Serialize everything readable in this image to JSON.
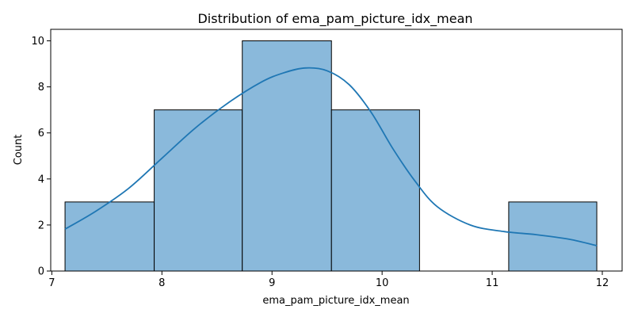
{
  "chart_data": {
    "type": "histogram",
    "title": "Distribution of ema_pam_picture_idx_mean",
    "xlabel": "ema_pam_picture_idx_mean",
    "ylabel": "Count",
    "xlim": [
      6.99,
      12.18
    ],
    "ylim": [
      0,
      10.5
    ],
    "xticks": [
      7,
      8,
      9,
      10,
      11,
      12
    ],
    "yticks": [
      0,
      2,
      4,
      6,
      8,
      10
    ],
    "bins": [
      {
        "x0": 7.12,
        "x1": 7.93,
        "count": 3
      },
      {
        "x0": 7.93,
        "x1": 8.73,
        "count": 7
      },
      {
        "x0": 8.73,
        "x1": 9.54,
        "count": 10
      },
      {
        "x0": 9.54,
        "x1": 10.34,
        "count": 7
      },
      {
        "x0": 10.34,
        "x1": 11.15,
        "count": 0
      },
      {
        "x0": 11.15,
        "x1": 11.95,
        "count": 3
      }
    ],
    "kde": {
      "x": [
        7.12,
        7.4,
        7.7,
        8.0,
        8.3,
        8.6,
        8.9,
        9.1,
        9.3,
        9.5,
        9.7,
        9.9,
        10.1,
        10.3,
        10.5,
        10.8,
        11.1,
        11.4,
        11.7,
        11.95
      ],
      "y": [
        1.82,
        2.6,
        3.6,
        4.9,
        6.2,
        7.3,
        8.2,
        8.6,
        8.82,
        8.7,
        8.1,
        6.9,
        5.3,
        3.9,
        2.8,
        2.0,
        1.72,
        1.58,
        1.38,
        1.1
      ]
    },
    "bar_color": "#8ab9db",
    "line_color": "#1f77b4",
    "grid": false,
    "legend": "none"
  }
}
